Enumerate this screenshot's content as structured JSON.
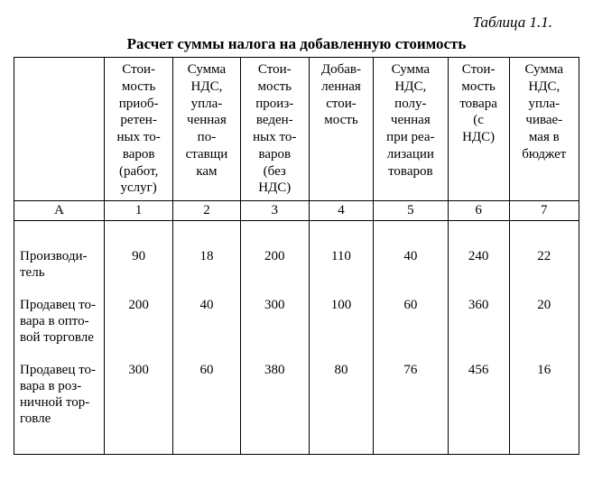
{
  "table_label": "Таблица 1.1.",
  "title": "Расчет суммы налога на добавленную стоимость",
  "columns_header": {
    "c0": "",
    "c1": "Стои-\nмость\nприоб-\nретен-\nных то-\nваров\n(работ,\nуслуг)",
    "c2": "Сумма\nНДС,\nупла-\nченная\nпо-\nставщи\nкам",
    "c3": "Стои-\nмость\nпроиз-\nведен-\nных то-\nваров\n(без\nНДС)",
    "c4": "Добав-\nленная\nстои-\nмость",
    "c5": "Сумма\nНДС,\nполу-\nченная\nпри реа-\nлизации\nтоваров",
    "c6": "Стои-\nмость\nтовара\n(с\nНДС)",
    "c7": "Сумма\nНДС,\nупла-\nчивае-\nмая в\nбюджет"
  },
  "letter_row": {
    "c0": "А",
    "c1": "1",
    "c2": "2",
    "c3": "3",
    "c4": "4",
    "c5": "5",
    "c6": "6",
    "c7": "7"
  },
  "row_labels": {
    "r1": "Производи-\nтель",
    "r2": "Продавец то-\nвара в опто-\nвой торговле",
    "r3": "Продавец то-\nвара в роз-\nничной тор-\nговле"
  },
  "data": {
    "r1": {
      "c1": "90",
      "c2": "18",
      "c3": "200",
      "c4": "110",
      "c5": "40",
      "c6": "240",
      "c7": "22"
    },
    "r2": {
      "c1": "200",
      "c2": "40",
      "c3": "300",
      "c4": "100",
      "c5": "60",
      "c6": "360",
      "c7": "20"
    },
    "r3": {
      "c1": "300",
      "c2": "60",
      "c3": "380",
      "c4": "80",
      "c5": "76",
      "c6": "456",
      "c7": "16"
    }
  },
  "style": {
    "font_family": "Times New Roman",
    "border_color": "#000000",
    "background_color": "#ffffff",
    "text_color": "#000000",
    "title_fontsize": 17,
    "cell_fontsize": 15,
    "col_widths_pct": [
      16,
      12,
      12,
      12,
      12,
      12,
      12,
      12
    ]
  }
}
